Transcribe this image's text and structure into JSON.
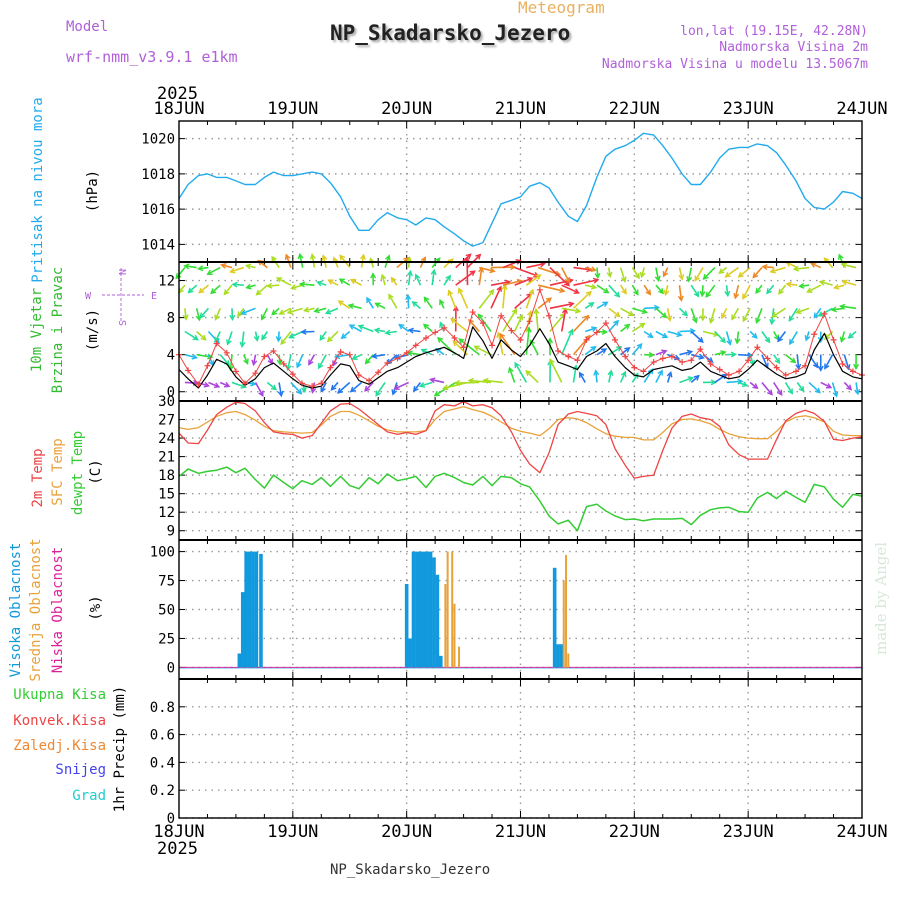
{
  "header": {
    "model_label": "Model",
    "model_name": "wrf-nmm_v3.9.1  e1km",
    "meteogram_label": "Meteogram",
    "station_title": "NP_Skadarsko_Jezero",
    "lonlat": "lon,lat (19.15E, 42.28N)",
    "altitude": "Nadmorska Visina 2m",
    "model_altitude": "Nadmorska Visina u modelu 13.5067m"
  },
  "footer": {
    "station": "NP_Skadarsko_Jezero",
    "watermark": "made by Angel"
  },
  "time_axis": {
    "year": "2025",
    "labels": [
      "18JUN",
      "19JUN",
      "20JUN",
      "21JUN",
      "22JUN",
      "23JUN",
      "24JUN"
    ]
  },
  "colors": {
    "pressure": "#22aaee",
    "wind_speed": "#000000",
    "wind_gust": "#ee4444",
    "temp2m": "#ee4444",
    "sfc_temp": "#e8a23a",
    "dewpoint": "#33cc33",
    "high_cloud": "#1199dd",
    "mid_cloud": "#e8a23a",
    "low_cloud": "#dd2299",
    "rain_total": "#33cc33",
    "rain_conv": "#ee4444",
    "freezing": "#ee8833",
    "snow": "#4444ee",
    "hail": "#22cccc",
    "header_purple": "#b060d8",
    "meteogram_gold": "#e8b060"
  },
  "chart_data": [
    {
      "type": "line",
      "panel": "pressure",
      "labels": [
        "Pritisak na nivou mora"
      ],
      "ylabel": "(hPa)",
      "ylim": [
        1013,
        1021
      ],
      "yticks": [
        1014,
        1016,
        1018,
        1020
      ],
      "x_unit": "days since 18JUN 00Z",
      "x": [
        0,
        0.08,
        0.17,
        0.25,
        0.33,
        0.42,
        0.5,
        0.58,
        0.67,
        0.75,
        0.83,
        0.92,
        1.0,
        1.08,
        1.17,
        1.25,
        1.33,
        1.42,
        1.5,
        1.58,
        1.67,
        1.75,
        1.83,
        1.92,
        2.0,
        2.08,
        2.17,
        2.25,
        2.33,
        2.42,
        2.5,
        2.58,
        2.67,
        2.75,
        2.83,
        2.92,
        3.0,
        3.08,
        3.17,
        3.25,
        3.33,
        3.42,
        3.5,
        3.58,
        3.67,
        3.75,
        3.83,
        3.92,
        4.0,
        4.08,
        4.17,
        4.25,
        4.33,
        4.42,
        4.5,
        4.58,
        4.67,
        4.75,
        4.83,
        4.92,
        5.0,
        5.08,
        5.17,
        5.25,
        5.33,
        5.42,
        5.5,
        5.58,
        5.67,
        5.75,
        5.83,
        5.92,
        6.0
      ],
      "y": [
        1016.6,
        1017.4,
        1017.9,
        1018.0,
        1017.8,
        1017.8,
        1017.6,
        1017.4,
        1017.4,
        1017.8,
        1018.1,
        1017.9,
        1017.9,
        1018.0,
        1018.1,
        1018.0,
        1017.5,
        1016.7,
        1015.6,
        1014.8,
        1014.8,
        1015.4,
        1015.8,
        1015.5,
        1015.4,
        1015.1,
        1015.5,
        1015.4,
        1015.0,
        1014.6,
        1014.2,
        1013.9,
        1014.1,
        1015.2,
        1016.3,
        1016.5,
        1016.7,
        1017.3,
        1017.5,
        1017.2,
        1016.4,
        1015.6,
        1015.3,
        1016.2,
        1017.8,
        1019.0,
        1019.4,
        1019.6,
        1019.9,
        1020.3,
        1020.2,
        1019.6,
        1018.9,
        1018.0,
        1017.4,
        1017.4,
        1018.1,
        1018.9,
        1019.4,
        1019.5,
        1019.5,
        1019.7,
        1019.6,
        1019.2,
        1018.5,
        1017.6,
        1016.6,
        1016.1,
        1016.0,
        1016.4,
        1017.0,
        1016.9,
        1016.6
      ]
    },
    {
      "type": "line",
      "panel": "wind",
      "labels": [
        "10m Vjetar",
        "Brzina i Pravac"
      ],
      "ylabel": "(m/s)",
      "ylim": [
        -1,
        14
      ],
      "yticks": [
        0,
        4,
        8,
        12
      ],
      "compass": {
        "w": "W",
        "e": "E",
        "n": "N",
        "s": "S"
      },
      "series": [
        {
          "type": "line",
          "x": [
            0,
            0.08,
            0.17,
            0.25,
            0.33,
            0.42,
            0.5,
            0.58,
            0.67,
            0.75,
            0.83,
            0.92,
            1.0,
            1.08,
            1.17,
            1.25,
            1.33,
            1.42,
            1.5,
            1.58,
            1.67,
            1.75,
            1.83,
            1.92,
            2.0,
            2.08,
            2.17,
            2.25,
            2.33,
            2.42,
            2.5,
            2.58,
            2.67,
            2.75,
            2.83,
            2.92,
            3.0,
            3.08,
            3.17,
            3.25,
            3.33,
            3.42,
            3.5,
            3.58,
            3.67,
            3.75,
            3.83,
            3.92,
            4.0,
            4.08,
            4.17,
            4.25,
            4.33,
            4.42,
            4.5,
            4.58,
            4.67,
            4.75,
            4.83,
            4.92,
            5.0,
            5.08,
            5.17,
            5.25,
            5.33,
            5.42,
            5.5,
            5.58,
            5.67,
            5.75,
            5.83,
            5.92,
            6.0
          ],
          "y": [
            2.4,
            1.4,
            0.4,
            1.8,
            3.5,
            3.0,
            1.6,
            0.7,
            1.4,
            2.6,
            3.1,
            2.2,
            1.4,
            0.7,
            0.4,
            0.6,
            1.8,
            3.0,
            2.8,
            1.2,
            0.8,
            1.5,
            2.2,
            2.6,
            3.2,
            3.8,
            4.2,
            4.5,
            4.8,
            4.2,
            3.6,
            7.0,
            5.5,
            3.6,
            5.6,
            4.5,
            3.8,
            5.0,
            6.8,
            5.2,
            3.2,
            2.8,
            2.4,
            3.8,
            4.4,
            5.2,
            3.8,
            2.6,
            1.8,
            1.6,
            2.4,
            2.6,
            2.8,
            2.3,
            2.5,
            3.2,
            2.2,
            1.8,
            1.4,
            1.6,
            2.4,
            3.4,
            2.6,
            1.9,
            1.4,
            1.6,
            2.0,
            4.5,
            6.3,
            4.0,
            2.2,
            1.6,
            1.4
          ]
        },
        {
          "type": "scatter",
          "marker": "+",
          "x": [
            0,
            0.08,
            0.17,
            0.25,
            0.33,
            0.42,
            0.5,
            0.58,
            0.67,
            0.75,
            0.83,
            0.92,
            1.0,
            1.08,
            1.17,
            1.25,
            1.33,
            1.42,
            1.5,
            1.58,
            1.67,
            1.75,
            1.83,
            1.92,
            2.0,
            2.08,
            2.17,
            2.25,
            2.33,
            2.42,
            2.5,
            2.58,
            2.67,
            2.75,
            2.83,
            2.92,
            3.0,
            3.08,
            3.17,
            3.25,
            3.33,
            3.42,
            3.5,
            3.58,
            3.67,
            3.75,
            3.83,
            3.92,
            4.0,
            4.08,
            4.17,
            4.25,
            4.33,
            4.42,
            4.5,
            4.58,
            4.67,
            4.75,
            4.83,
            4.92,
            5.0,
            5.08,
            5.17,
            5.25,
            5.33,
            5.42,
            5.5,
            5.58,
            5.67,
            5.75,
            5.83,
            5.92,
            6.0
          ],
          "y": [
            4.0,
            2.3,
            0.8,
            2.8,
            5.2,
            4.2,
            2.2,
            0.9,
            2.0,
            3.8,
            4.4,
            3.0,
            1.9,
            0.9,
            0.6,
            0.9,
            2.6,
            4.3,
            4.0,
            1.8,
            1.2,
            2.1,
            3.1,
            3.6,
            4.2,
            5.0,
            5.8,
            6.4,
            6.9,
            5.8,
            4.8,
            8.6,
            7.4,
            5.0,
            8.2,
            6.6,
            5.6,
            7.6,
            11.0,
            8.2,
            4.4,
            3.8,
            3.4,
            5.6,
            6.4,
            7.4,
            5.6,
            3.8,
            2.6,
            2.2,
            3.2,
            3.6,
            3.8,
            3.2,
            3.4,
            4.6,
            3.0,
            2.4,
            1.8,
            2.2,
            3.4,
            4.8,
            3.6,
            2.6,
            1.8,
            2.2,
            2.8,
            6.2,
            8.4,
            5.6,
            3.0,
            2.2,
            1.8
          ]
        }
      ]
    },
    {
      "type": "line",
      "panel": "temperature",
      "labels": [
        "2m Temp",
        "SFC Temp",
        "dewpt Temp"
      ],
      "ylabel": "(C)",
      "ylim": [
        7.5,
        30
      ],
      "yticks": [
        9,
        12,
        15,
        18,
        21,
        24,
        27,
        30
      ],
      "series": [
        {
          "x": [
            0,
            0.08,
            0.17,
            0.25,
            0.33,
            0.42,
            0.5,
            0.58,
            0.67,
            0.75,
            0.83,
            0.92,
            1.0,
            1.08,
            1.17,
            1.25,
            1.33,
            1.42,
            1.5,
            1.58,
            1.67,
            1.75,
            1.83,
            1.92,
            2.0,
            2.08,
            2.17,
            2.25,
            2.33,
            2.42,
            2.5,
            2.58,
            2.67,
            2.75,
            2.83,
            2.92,
            3.0,
            3.08,
            3.17,
            3.25,
            3.33,
            3.42,
            3.5,
            3.58,
            3.67,
            3.75,
            3.83,
            3.92,
            4.0,
            4.08,
            4.17,
            4.25,
            4.33,
            4.42,
            4.5,
            4.58,
            4.67,
            4.75,
            4.83,
            4.92,
            5.0,
            5.08,
            5.17,
            5.25,
            5.33,
            5.42,
            5.5,
            5.58,
            5.67,
            5.75,
            5.83,
            5.92,
            6.0
          ],
          "y": [
            24.8,
            23.2,
            23.1,
            25.3,
            27.8,
            29.0,
            29.8,
            29.6,
            28.4,
            26.5,
            25.0,
            24.7,
            24.6,
            24.0,
            24.4,
            26.4,
            28.4,
            29.5,
            29.6,
            28.7,
            27.4,
            26.2,
            25.0,
            24.6,
            24.9,
            24.6,
            25.2,
            28.4,
            29.4,
            29.2,
            29.9,
            29.2,
            29.4,
            28.9,
            27.6,
            25.0,
            22.0,
            19.8,
            18.4,
            21.6,
            26.2,
            27.9,
            28.3,
            28.0,
            27.6,
            26.2,
            22.3,
            19.6,
            17.5,
            17.8,
            18.0,
            22.0,
            25.6,
            27.5,
            27.9,
            27.3,
            27.0,
            25.9,
            22.9,
            21.3,
            20.6,
            20.6,
            20.6,
            23.8,
            26.8,
            28.0,
            28.5,
            28.0,
            26.7,
            23.8,
            23.6,
            24.0,
            24.2
          ]
        },
        {
          "x": [
            0,
            0.08,
            0.17,
            0.25,
            0.33,
            0.42,
            0.5,
            0.58,
            0.67,
            0.75,
            0.83,
            0.92,
            1.0,
            1.08,
            1.17,
            1.25,
            1.33,
            1.42,
            1.5,
            1.58,
            1.67,
            1.75,
            1.83,
            1.92,
            2.0,
            2.08,
            2.17,
            2.25,
            2.33,
            2.42,
            2.5,
            2.58,
            2.67,
            2.75,
            2.83,
            2.92,
            3.0,
            3.08,
            3.17,
            3.25,
            3.33,
            3.42,
            3.5,
            3.58,
            3.67,
            3.75,
            3.83,
            3.92,
            4.0,
            4.08,
            4.17,
            4.25,
            4.33,
            4.42,
            4.5,
            4.58,
            4.67,
            4.75,
            4.83,
            4.92,
            5.0,
            5.08,
            5.17,
            5.25,
            5.33,
            5.42,
            5.5,
            5.58,
            5.67,
            5.75,
            5.83,
            5.92,
            6.0
          ],
          "y": [
            25.7,
            25.4,
            25.7,
            26.6,
            27.5,
            28.1,
            28.3,
            27.8,
            26.9,
            25.9,
            25.2,
            25.0,
            24.9,
            24.8,
            24.9,
            26.1,
            27.5,
            28.3,
            28.3,
            27.7,
            26.8,
            25.9,
            25.3,
            25.0,
            25.0,
            25.0,
            25.2,
            27.0,
            28.3,
            28.7,
            29.1,
            28.6,
            28.2,
            27.5,
            26.6,
            25.6,
            25.1,
            24.8,
            24.4,
            25.5,
            27.0,
            27.3,
            27.1,
            26.5,
            25.5,
            24.7,
            24.3,
            24.1,
            24.1,
            23.7,
            23.7,
            24.9,
            26.3,
            27.0,
            27.1,
            26.8,
            26.3,
            25.4,
            24.7,
            24.2,
            24.0,
            23.9,
            23.9,
            25.1,
            26.6,
            27.4,
            27.6,
            27.3,
            26.6,
            25.1,
            24.5,
            24.4,
            24.4
          ]
        },
        {
          "x": [
            0,
            0.08,
            0.17,
            0.25,
            0.33,
            0.42,
            0.5,
            0.58,
            0.67,
            0.75,
            0.83,
            0.92,
            1.0,
            1.08,
            1.17,
            1.25,
            1.33,
            1.42,
            1.5,
            1.58,
            1.67,
            1.75,
            1.83,
            1.92,
            2.0,
            2.08,
            2.17,
            2.25,
            2.33,
            2.42,
            2.5,
            2.58,
            2.67,
            2.75,
            2.83,
            2.92,
            3.0,
            3.08,
            3.17,
            3.25,
            3.33,
            3.42,
            3.5,
            3.58,
            3.67,
            3.75,
            3.83,
            3.92,
            4.0,
            4.08,
            4.17,
            4.25,
            4.33,
            4.42,
            4.5,
            4.58,
            4.67,
            4.75,
            4.83,
            4.92,
            5.0,
            5.08,
            5.17,
            5.25,
            5.33,
            5.42,
            5.5,
            5.58,
            5.67,
            5.75,
            5.83,
            5.92,
            6.0
          ],
          "y": [
            17.8,
            19.0,
            18.3,
            18.6,
            18.8,
            19.3,
            18.4,
            19.1,
            17.3,
            15.9,
            18.0,
            16.8,
            15.8,
            17.1,
            16.5,
            17.6,
            16.2,
            17.8,
            16.3,
            15.8,
            17.6,
            16.6,
            18.2,
            17.1,
            17.4,
            17.8,
            16.0,
            17.8,
            18.3,
            17.6,
            16.8,
            16.4,
            17.8,
            16.3,
            17.8,
            17.6,
            16.6,
            16.1,
            13.8,
            11.4,
            10.1,
            10.7,
            9.0,
            12.9,
            13.3,
            12.2,
            11.4,
            10.8,
            10.9,
            10.6,
            10.9,
            10.9,
            10.9,
            11.0,
            10.0,
            11.5,
            12.4,
            12.7,
            12.8,
            12.1,
            12.0,
            14.3,
            15.2,
            14.2,
            15.4,
            14.4,
            13.6,
            16.5,
            16.1,
            14.1,
            12.8,
            14.9,
            14.6
          ]
        }
      ]
    },
    {
      "type": "bar",
      "panel": "cloud",
      "labels": [
        "Visoka Oblacnost",
        "Srednja Oblacnost",
        "Niska Oblacnost"
      ],
      "ylabel": "(%)",
      "ylim": [
        -10,
        110
      ],
      "yticks": [
        0,
        25,
        50,
        75,
        100
      ],
      "series": [
        {
          "x": [
            0.53,
            0.56,
            0.59,
            0.62,
            0.65,
            0.68,
            0.72,
            2.0,
            2.03,
            2.06,
            2.09,
            2.12,
            2.15,
            2.18,
            2.21,
            2.24,
            2.27,
            2.3,
            3.3,
            3.33,
            3.36
          ],
          "y": [
            12,
            65,
            100,
            100,
            100,
            100,
            98,
            72,
            25,
            100,
            100,
            100,
            100,
            100,
            100,
            95,
            80,
            10,
            86,
            20,
            20
          ]
        },
        {
          "x": [
            2.34,
            2.36,
            2.4,
            2.42,
            2.46,
            3.38,
            3.4,
            3.42
          ],
          "y": [
            72,
            100,
            100,
            55,
            18,
            75,
            97,
            12
          ]
        },
        {
          "x": [],
          "y": []
        }
      ]
    },
    {
      "type": "line",
      "panel": "precipitation",
      "labels": [
        "Ukupna Kisa",
        "Konvek.Kisa",
        "Zaledj.Kisa",
        "Snijeg",
        "Grad"
      ],
      "ylabel": "1hr Precip (mm)",
      "ylim": [
        0,
        1
      ],
      "yticks": [
        0,
        0.2,
        0.4,
        0.6,
        0.8
      ],
      "series": []
    }
  ]
}
